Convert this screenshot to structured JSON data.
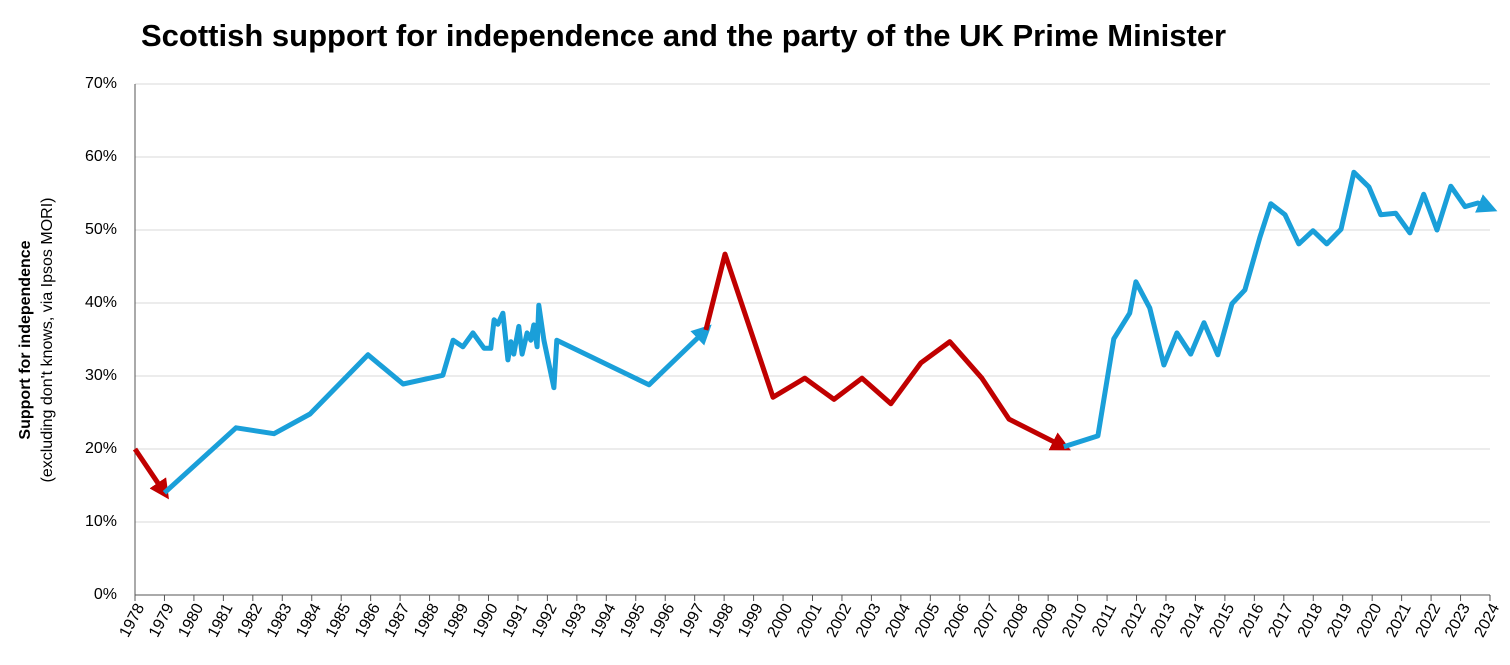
{
  "chart_data": {
    "type": "line",
    "title": "Scottish support for independence and the party of the UK Prime Minister",
    "y_label": "Support for independence",
    "y_sublabel": "(excluding don't knows, via Ipsos MORI)",
    "xlim": [
      1978,
      2024
    ],
    "xticks": [
      1978,
      1979,
      1980,
      1981,
      1982,
      1983,
      1984,
      1985,
      1986,
      1987,
      1988,
      1989,
      1990,
      1991,
      1992,
      1993,
      1994,
      1995,
      1996,
      1997,
      1998,
      1999,
      2000,
      2001,
      2002,
      2003,
      2004,
      2005,
      2006,
      2007,
      2008,
      2009,
      2010,
      2011,
      2012,
      2013,
      2014,
      2015,
      2016,
      2017,
      2018,
      2019,
      2020,
      2021,
      2022,
      2023,
      2024
    ],
    "ylim": [
      0,
      70
    ],
    "yticks": [
      {
        "value": 0,
        "label": "0%"
      },
      {
        "value": 10,
        "label": "10%"
      },
      {
        "value": 20,
        "label": "20%"
      },
      {
        "value": 30,
        "label": "30%"
      },
      {
        "value": 40,
        "label": "40%"
      },
      {
        "value": 50,
        "label": "50%"
      },
      {
        "value": 60,
        "label": "60%"
      },
      {
        "value": 70,
        "label": "70%"
      }
    ],
    "grid": true,
    "series": [
      {
        "color": "#c00000",
        "x": [
          1978.0,
          1979.0
        ],
        "values": [
          20.0,
          14.0
        ]
      },
      {
        "color": "#1a9fd9",
        "x": [
          1979.0,
          1981.43,
          1982.72,
          1983.94,
          1985.91,
          1987.1,
          1988.45,
          1988.8,
          1989.13,
          1989.47,
          1989.85,
          1990.08,
          1990.19,
          1990.32,
          1990.49,
          1990.66,
          1990.76,
          1990.86,
          1991.03,
          1991.14,
          1991.31,
          1991.44,
          1991.54,
          1991.65,
          1991.71,
          1991.88,
          1992.22,
          1992.32,
          1995.45,
          1997.38
        ],
        "values": [
          14.0,
          22.9,
          22.1,
          24.8,
          32.9,
          28.9,
          30.1,
          34.9,
          34.0,
          35.9,
          33.8,
          33.8,
          37.7,
          37.1,
          38.6,
          32.2,
          34.7,
          33.0,
          36.8,
          33.0,
          35.9,
          34.9,
          37.0,
          34.0,
          39.7,
          34.9,
          28.4,
          34.9,
          28.8,
          36.3
        ]
      },
      {
        "color": "#c00000",
        "x": [
          1997.38,
          1998.03,
          1999.66,
          2000.74,
          2001.73,
          2002.68,
          2003.66,
          2004.68,
          2005.66,
          2006.75,
          2007.67,
          2009.53
        ],
        "values": [
          36.3,
          46.7,
          27.1,
          29.7,
          26.8,
          29.7,
          26.2,
          31.8,
          34.7,
          29.7,
          24.1,
          20.3
        ]
      },
      {
        "color": "#1a9fd9",
        "x": [
          2009.53,
          2010.69,
          2011.23,
          2011.77,
          2011.98,
          2012.45,
          2012.93,
          2013.37,
          2013.84,
          2014.29,
          2014.76,
          2015.24,
          2015.68,
          2016.19,
          2016.56,
          2017.04,
          2017.51,
          2017.99,
          2018.46,
          2018.94,
          2019.38,
          2019.89,
          2020.29,
          2020.8,
          2021.28,
          2021.75,
          2022.2,
          2022.67,
          2023.15,
          2023.59,
          2024.0
        ],
        "values": [
          20.3,
          21.8,
          35.1,
          38.6,
          42.9,
          39.3,
          31.5,
          35.9,
          33.0,
          37.3,
          32.9,
          39.9,
          41.8,
          49.0,
          53.6,
          52.1,
          48.1,
          49.9,
          48.1,
          50.1,
          57.9,
          55.9,
          52.1,
          52.3,
          49.6,
          54.9,
          50.0,
          56.0,
          53.2,
          53.7,
          53.0
        ]
      }
    ]
  }
}
